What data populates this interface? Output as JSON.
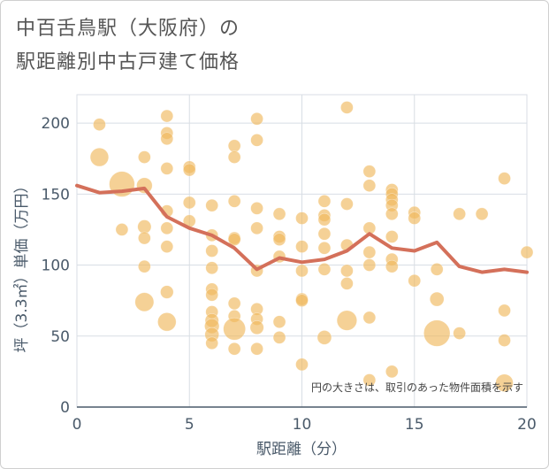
{
  "title_line1": "中百舌鳥駅（大阪府）の",
  "title_line2": "駅距離別中古戸建て価格",
  "note": "円の大きさは、取引のあった物件面積を示す",
  "colors": {
    "bubble": "#f0b95e",
    "line": "#d4705a",
    "grid": "#d8dee4",
    "axis": "#4a5a6a"
  },
  "chart_data": {
    "type": "scatter",
    "xlabel": "駅距離（分）",
    "ylabel": "坪（3.3㎡）単価（万円）",
    "xlim": [
      0,
      20
    ],
    "ylim": [
      0,
      220
    ],
    "x_ticks": [
      0,
      5,
      10,
      15,
      20
    ],
    "y_ticks": [
      0,
      50,
      100,
      150,
      200
    ],
    "series": [
      {
        "kind": "bubble",
        "points": [
          {
            "x": 1,
            "y": 176,
            "s": 2.2
          },
          {
            "x": 1,
            "y": 199,
            "s": 1
          },
          {
            "x": 2,
            "y": 157,
            "s": 4.2
          },
          {
            "x": 2,
            "y": 125,
            "s": 1
          },
          {
            "x": 3,
            "y": 176,
            "s": 1
          },
          {
            "x": 3,
            "y": 156,
            "s": 1.6
          },
          {
            "x": 3,
            "y": 127,
            "s": 1.2
          },
          {
            "x": 3,
            "y": 119,
            "s": 1
          },
          {
            "x": 3,
            "y": 99,
            "s": 1
          },
          {
            "x": 3,
            "y": 74,
            "s": 2.3
          },
          {
            "x": 4,
            "y": 205,
            "s": 1
          },
          {
            "x": 4,
            "y": 193,
            "s": 1
          },
          {
            "x": 4,
            "y": 189,
            "s": 1
          },
          {
            "x": 4,
            "y": 168,
            "s": 1
          },
          {
            "x": 4,
            "y": 138,
            "s": 1
          },
          {
            "x": 4,
            "y": 126,
            "s": 1
          },
          {
            "x": 4,
            "y": 113,
            "s": 1
          },
          {
            "x": 4,
            "y": 81,
            "s": 1.1
          },
          {
            "x": 4,
            "y": 60,
            "s": 2.2
          },
          {
            "x": 5,
            "y": 169,
            "s": 1
          },
          {
            "x": 5,
            "y": 167,
            "s": 1
          },
          {
            "x": 5,
            "y": 144,
            "s": 1
          },
          {
            "x": 5,
            "y": 131,
            "s": 1
          },
          {
            "x": 6,
            "y": 142,
            "s": 1
          },
          {
            "x": 6,
            "y": 121,
            "s": 1
          },
          {
            "x": 6,
            "y": 110,
            "s": 1
          },
          {
            "x": 6,
            "y": 98,
            "s": 1
          },
          {
            "x": 6,
            "y": 83,
            "s": 1
          },
          {
            "x": 6,
            "y": 79,
            "s": 1
          },
          {
            "x": 6,
            "y": 67,
            "s": 1
          },
          {
            "x": 6,
            "y": 61,
            "s": 1.2
          },
          {
            "x": 6,
            "y": 57,
            "s": 1.4
          },
          {
            "x": 6,
            "y": 51,
            "s": 1.3
          },
          {
            "x": 6,
            "y": 45,
            "s": 1
          },
          {
            "x": 7,
            "y": 184,
            "s": 1
          },
          {
            "x": 7,
            "y": 176,
            "s": 1
          },
          {
            "x": 7,
            "y": 145,
            "s": 1
          },
          {
            "x": 7,
            "y": 119,
            "s": 1
          },
          {
            "x": 7,
            "y": 118,
            "s": 1
          },
          {
            "x": 7,
            "y": 73,
            "s": 1
          },
          {
            "x": 7,
            "y": 64,
            "s": 1
          },
          {
            "x": 7,
            "y": 55,
            "s": 3.2
          },
          {
            "x": 7,
            "y": 41,
            "s": 1
          },
          {
            "x": 8,
            "y": 203,
            "s": 1
          },
          {
            "x": 8,
            "y": 188,
            "s": 1
          },
          {
            "x": 8,
            "y": 140,
            "s": 1
          },
          {
            "x": 8,
            "y": 126,
            "s": 1
          },
          {
            "x": 8,
            "y": 96,
            "s": 1
          },
          {
            "x": 8,
            "y": 69,
            "s": 1
          },
          {
            "x": 8,
            "y": 62,
            "s": 1
          },
          {
            "x": 8,
            "y": 56,
            "s": 1.2
          },
          {
            "x": 8,
            "y": 41,
            "s": 1
          },
          {
            "x": 9,
            "y": 136,
            "s": 1
          },
          {
            "x": 9,
            "y": 120,
            "s": 1
          },
          {
            "x": 9,
            "y": 118,
            "s": 1
          },
          {
            "x": 9,
            "y": 106,
            "s": 1
          },
          {
            "x": 9,
            "y": 60,
            "s": 1
          },
          {
            "x": 9,
            "y": 49,
            "s": 1
          },
          {
            "x": 10,
            "y": 133,
            "s": 1
          },
          {
            "x": 10,
            "y": 113,
            "s": 1
          },
          {
            "x": 10,
            "y": 96,
            "s": 1
          },
          {
            "x": 10,
            "y": 76,
            "s": 1
          },
          {
            "x": 10,
            "y": 75,
            "s": 1
          },
          {
            "x": 10,
            "y": 30,
            "s": 1
          },
          {
            "x": 11,
            "y": 145,
            "s": 1
          },
          {
            "x": 11,
            "y": 135,
            "s": 1
          },
          {
            "x": 11,
            "y": 132,
            "s": 1
          },
          {
            "x": 11,
            "y": 122,
            "s": 1
          },
          {
            "x": 11,
            "y": 112,
            "s": 1
          },
          {
            "x": 11,
            "y": 97,
            "s": 1
          },
          {
            "x": 11,
            "y": 49,
            "s": 1.3
          },
          {
            "x": 12,
            "y": 211,
            "s": 1
          },
          {
            "x": 12,
            "y": 143,
            "s": 1
          },
          {
            "x": 12,
            "y": 114,
            "s": 1
          },
          {
            "x": 12,
            "y": 96,
            "s": 1
          },
          {
            "x": 12,
            "y": 87,
            "s": 1
          },
          {
            "x": 12,
            "y": 61,
            "s": 2.6
          },
          {
            "x": 13,
            "y": 166,
            "s": 1
          },
          {
            "x": 13,
            "y": 156,
            "s": 1
          },
          {
            "x": 13,
            "y": 126,
            "s": 1
          },
          {
            "x": 13,
            "y": 109,
            "s": 1
          },
          {
            "x": 13,
            "y": 100,
            "s": 1
          },
          {
            "x": 13,
            "y": 63,
            "s": 1
          },
          {
            "x": 13,
            "y": 19,
            "s": 1
          },
          {
            "x": 14,
            "y": 153,
            "s": 1
          },
          {
            "x": 14,
            "y": 150,
            "s": 1
          },
          {
            "x": 14,
            "y": 146,
            "s": 1
          },
          {
            "x": 14,
            "y": 142,
            "s": 1
          },
          {
            "x": 14,
            "y": 136,
            "s": 1
          },
          {
            "x": 14,
            "y": 120,
            "s": 1
          },
          {
            "x": 14,
            "y": 104,
            "s": 1
          },
          {
            "x": 14,
            "y": 99,
            "s": 1
          },
          {
            "x": 14,
            "y": 25,
            "s": 1
          },
          {
            "x": 15,
            "y": 137,
            "s": 1
          },
          {
            "x": 15,
            "y": 133,
            "s": 1
          },
          {
            "x": 15,
            "y": 89,
            "s": 1
          },
          {
            "x": 16,
            "y": 97,
            "s": 1
          },
          {
            "x": 16,
            "y": 76,
            "s": 1.3
          },
          {
            "x": 16,
            "y": 52,
            "s": 4.5
          },
          {
            "x": 17,
            "y": 136,
            "s": 1
          },
          {
            "x": 17,
            "y": 52,
            "s": 1
          },
          {
            "x": 18,
            "y": 136,
            "s": 1
          },
          {
            "x": 19,
            "y": 161,
            "s": 1
          },
          {
            "x": 19,
            "y": 68,
            "s": 1
          },
          {
            "x": 19,
            "y": 47,
            "s": 1
          },
          {
            "x": 19,
            "y": 17,
            "s": 2.0
          },
          {
            "x": 20,
            "y": 109,
            "s": 1
          }
        ]
      },
      {
        "kind": "line",
        "x": [
          0,
          1,
          2,
          3,
          4,
          5,
          6,
          7,
          8,
          9,
          10,
          11,
          12,
          13,
          14,
          15,
          16,
          17,
          18,
          19,
          20
        ],
        "y": [
          156,
          151,
          152,
          154,
          134,
          126,
          121,
          112,
          97,
          105,
          102,
          104,
          110,
          122,
          112,
          110,
          116,
          99,
          95,
          97,
          95
        ]
      }
    ]
  }
}
